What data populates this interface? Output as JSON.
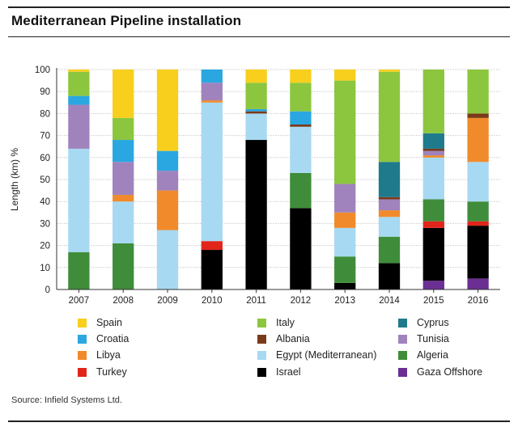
{
  "title": "Mediterranean Pipeline installation",
  "source": "Source: Infield Systems Ltd.",
  "chart_data": {
    "type": "bar",
    "stacked": true,
    "ylabel": "Length (km) %",
    "xlabel": "",
    "ylim": [
      0,
      100
    ],
    "yticks": [
      0,
      10,
      20,
      30,
      40,
      50,
      60,
      70,
      80,
      90,
      100
    ],
    "categories": [
      "2007",
      "2008",
      "2009",
      "2010",
      "2011",
      "2012",
      "2013",
      "2014",
      "2015",
      "2016"
    ],
    "legend_position": "bottom",
    "series": [
      {
        "name": "Gaza Offshore",
        "color": "#6b2f93",
        "values": [
          0,
          0,
          0,
          0,
          0,
          0,
          0,
          0,
          4,
          5
        ]
      },
      {
        "name": "Israel",
        "color": "#000000",
        "values": [
          0,
          0,
          0,
          18,
          68,
          37,
          3,
          12,
          24,
          24
        ]
      },
      {
        "name": "Turkey",
        "color": "#e1251b",
        "values": [
          0,
          0,
          0,
          4,
          0,
          0,
          0,
          0,
          3,
          2
        ]
      },
      {
        "name": "Algeria",
        "color": "#3f8d3a",
        "values": [
          17,
          21,
          0,
          0,
          0,
          16,
          12,
          12,
          10,
          9
        ]
      },
      {
        "name": "Egypt (Mediterranean)",
        "color": "#a7d9f2",
        "values": [
          47,
          19,
          27,
          63,
          12,
          21,
          13,
          9,
          19,
          18
        ]
      },
      {
        "name": "Libya",
        "color": "#f18a2a",
        "values": [
          0,
          3,
          18,
          1,
          0,
          0,
          7,
          3,
          1,
          20
        ]
      },
      {
        "name": "Tunisia",
        "color": "#a083bd",
        "values": [
          20,
          15,
          9,
          8,
          0,
          0,
          13,
          5,
          2,
          0
        ]
      },
      {
        "name": "Albania",
        "color": "#7a3a1a",
        "values": [
          0,
          0,
          0,
          0,
          1,
          1,
          0,
          1,
          1,
          2
        ]
      },
      {
        "name": "Cyprus",
        "color": "#1f7a8c",
        "values": [
          0,
          0,
          0,
          0,
          0,
          0,
          0,
          16,
          7,
          0
        ]
      },
      {
        "name": "Croatia",
        "color": "#2aa7e1",
        "values": [
          4,
          10,
          9,
          6,
          1,
          6,
          0,
          0,
          0,
          0
        ]
      },
      {
        "name": "Italy",
        "color": "#8cc63e",
        "values": [
          11,
          10,
          0,
          0,
          12,
          13,
          47,
          41,
          29,
          20
        ]
      },
      {
        "name": "Spain",
        "color": "#f7cf1c",
        "values": [
          1,
          22,
          37,
          0,
          6,
          6,
          5,
          1,
          0,
          0
        ]
      }
    ]
  },
  "legend": [
    {
      "label": "Spain",
      "color": "#f7cf1c"
    },
    {
      "label": "Italy",
      "color": "#8cc63e"
    },
    {
      "label": "Cyprus",
      "color": "#1f7a8c"
    },
    {
      "label": "Croatia",
      "color": "#2aa7e1"
    },
    {
      "label": "Albania",
      "color": "#7a3a1a"
    },
    {
      "label": "Tunisia",
      "color": "#a083bd"
    },
    {
      "label": "Libya",
      "color": "#f18a2a"
    },
    {
      "label": "Egypt (Mediterranean)",
      "color": "#a7d9f2"
    },
    {
      "label": "Algeria",
      "color": "#3f8d3a"
    },
    {
      "label": "Turkey",
      "color": "#e1251b"
    },
    {
      "label": "Israel",
      "color": "#000000"
    },
    {
      "label": "Gaza Offshore",
      "color": "#6b2f93"
    }
  ]
}
